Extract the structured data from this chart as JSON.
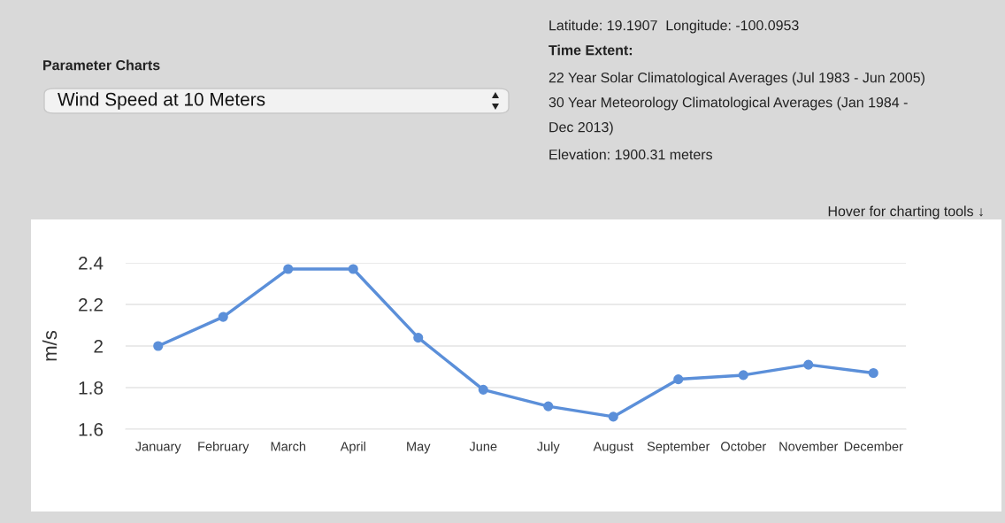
{
  "chart_data": {
    "type": "line",
    "title": "Wind Speed at 10 Meters",
    "ylabel": "m/s",
    "categories": [
      "January",
      "February",
      "March",
      "April",
      "May",
      "June",
      "July",
      "August",
      "September",
      "October",
      "November",
      "December"
    ],
    "series": [
      {
        "color": "#5b8fd9",
        "values": [
          2.0,
          2.14,
          2.37,
          2.37,
          2.04,
          1.79,
          1.71,
          1.66,
          1.84,
          1.86,
          1.91,
          1.87
        ]
      }
    ],
    "ylim": [
      1.6,
      2.4
    ],
    "yticks": [
      1.6,
      1.8,
      2,
      2.2,
      2.4
    ],
    "grid": "y",
    "marker": "circle",
    "line_style": "solid",
    "annotations": [
      "Parameter Charts",
      "Latitude: 19.1907  Longitude: -100.0953",
      "Time Extent:",
      "22 Year Solar Climatological Averages (Jul 1983 - Jun 2005)",
      "30 Year Meteorology Climatological Averages (Jan 1984 -",
      "Dec 2013)",
      "Elevation: 1900.31 meters",
      "Hover for charting tools ↓"
    ]
  }
}
